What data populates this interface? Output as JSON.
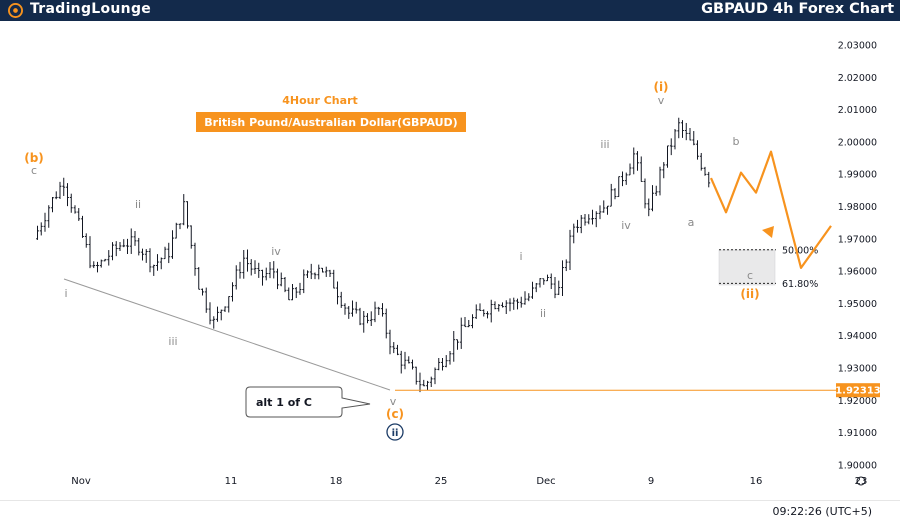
{
  "header": {
    "brand": "TradingLounge",
    "ticker_title": "GBPAUD 4h Forex Chart"
  },
  "footer": {
    "clock": "09:22:26 (UTC+5)"
  },
  "colors": {
    "header_bg": "#132a4b",
    "accent": "#f7931e",
    "wave_gray": "#8a8a8a",
    "candle": "#131722",
    "circle_blue": "#1b3b66"
  },
  "chart_data": {
    "type": "candlestick",
    "title": "4Hour Chart",
    "subtitle": "British Pound/Australian Dollar(GBPAUD)",
    "x_ticks": [
      "Nov",
      "11",
      "18",
      "25",
      "Dec",
      "9",
      "16",
      "23"
    ],
    "y_ticks": [
      "2.03000",
      "2.02000",
      "2.01000",
      "2.00000",
      "1.99000",
      "1.98000",
      "1.97000",
      "1.96000",
      "1.95000",
      "1.94000",
      "1.93000",
      "1.92000",
      "1.91000",
      "1.90000"
    ],
    "ylim": [
      1.899,
      2.034
    ],
    "price_line": {
      "value": 1.92313,
      "label": "1.92313"
    },
    "fib_levels": [
      {
        "label": "50.00%",
        "value": 1.9666
      },
      {
        "label": "61.80%",
        "value": 1.9562
      }
    ],
    "wave_labels": [
      {
        "text": "(b)",
        "color": "orange"
      },
      {
        "text": "c",
        "color": "gray"
      },
      {
        "text": "i",
        "color": "gray"
      },
      {
        "text": "ii",
        "color": "gray"
      },
      {
        "text": "iii",
        "color": "gray"
      },
      {
        "text": "iv",
        "color": "gray"
      },
      {
        "text": "v",
        "color": "gray"
      },
      {
        "text": "(c)",
        "color": "orange"
      },
      {
        "text": "ii",
        "color": "circle"
      },
      {
        "text": "i",
        "color": "gray"
      },
      {
        "text": "ii",
        "color": "gray"
      },
      {
        "text": "iii",
        "color": "gray"
      },
      {
        "text": "iv",
        "color": "gray"
      },
      {
        "text": "(i)",
        "color": "orange"
      },
      {
        "text": "v",
        "color": "gray"
      },
      {
        "text": "a",
        "color": "gray"
      },
      {
        "text": "b",
        "color": "gray"
      },
      {
        "text": "c",
        "color": "gray"
      },
      {
        "text": "(ii)",
        "color": "orange"
      }
    ],
    "callout": "alt 1 of C",
    "projection": [
      {
        "date": "Dec 13",
        "value": 1.9888
      },
      {
        "date": "Dec 14",
        "value": 1.9782
      },
      {
        "date": "Dec 15",
        "value": 1.9905
      },
      {
        "date": "Dec 16",
        "value": 1.9843
      },
      {
        "date": "Dec 17",
        "value": 1.997
      },
      {
        "date": "Dec 19",
        "value": 1.961
      },
      {
        "date": "Dec 21",
        "value": 1.974
      }
    ],
    "close_series": [
      {
        "date": "Oct 29",
        "value": 1.97
      },
      {
        "date": "Oct 30",
        "value": 1.98
      },
      {
        "date": "Oct 31",
        "value": 1.988
      },
      {
        "date": "Nov 1",
        "value": 1.974
      },
      {
        "date": "Nov 2",
        "value": 1.96
      },
      {
        "date": "Nov 3",
        "value": 1.965
      },
      {
        "date": "Nov 4",
        "value": 1.969
      },
      {
        "date": "Nov 5",
        "value": 1.968
      },
      {
        "date": "Nov 6",
        "value": 1.962
      },
      {
        "date": "Nov 7",
        "value": 1.966
      },
      {
        "date": "Nov 8",
        "value": 1.98
      },
      {
        "date": "Nov 9",
        "value": 1.956
      },
      {
        "date": "Nov 10",
        "value": 1.944
      },
      {
        "date": "Nov 11",
        "value": 1.953
      },
      {
        "date": "Nov 12",
        "value": 1.964
      },
      {
        "date": "Nov 13",
        "value": 1.958
      },
      {
        "date": "Nov 14",
        "value": 1.96
      },
      {
        "date": "Nov 15",
        "value": 1.951
      },
      {
        "date": "Nov 16",
        "value": 1.957
      },
      {
        "date": "Nov 17",
        "value": 1.962
      },
      {
        "date": "Nov 18",
        "value": 1.956
      },
      {
        "date": "Nov 19",
        "value": 1.947
      },
      {
        "date": "Nov 20",
        "value": 1.945
      },
      {
        "date": "Nov 21",
        "value": 1.948
      },
      {
        "date": "Nov 22",
        "value": 1.935
      },
      {
        "date": "Nov 23",
        "value": 1.93
      },
      {
        "date": "Nov 24",
        "value": 1.924
      },
      {
        "date": "Nov 25",
        "value": 1.931
      },
      {
        "date": "Nov 26",
        "value": 1.938
      },
      {
        "date": "Nov 27",
        "value": 1.944
      },
      {
        "date": "Nov 28",
        "value": 1.948
      },
      {
        "date": "Nov 29",
        "value": 1.951
      },
      {
        "date": "Nov 30",
        "value": 1.95
      },
      {
        "date": "Dec 1",
        "value": 1.952
      },
      {
        "date": "Dec 2",
        "value": 1.958
      },
      {
        "date": "Dec 3",
        "value": 1.954
      },
      {
        "date": "Dec 4",
        "value": 1.974
      },
      {
        "date": "Dec 5",
        "value": 1.978
      },
      {
        "date": "Dec 6",
        "value": 1.98
      },
      {
        "date": "Dec 7",
        "value": 1.987
      },
      {
        "date": "Dec 8",
        "value": 1.996
      },
      {
        "date": "Dec 9",
        "value": 1.978
      },
      {
        "date": "Dec 10",
        "value": 1.994
      },
      {
        "date": "Dec 11",
        "value": 2.005
      },
      {
        "date": "Dec 12",
        "value": 1.998
      },
      {
        "date": "Dec 13",
        "value": 1.9888
      }
    ]
  }
}
